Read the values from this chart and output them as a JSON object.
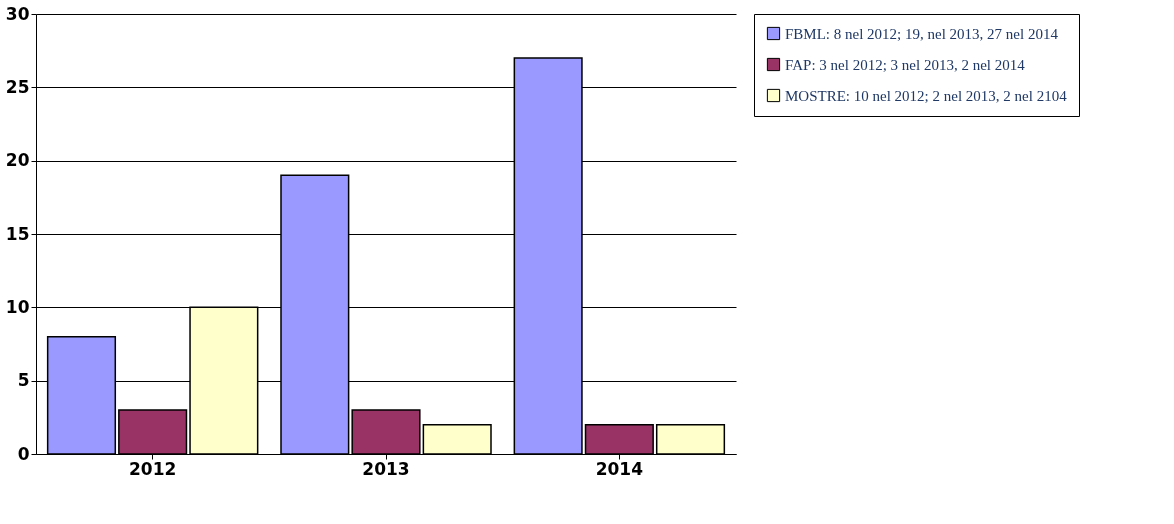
{
  "chart_data": {
    "type": "bar",
    "categories": [
      "2012",
      "2013",
      "2014"
    ],
    "series": [
      {
        "name": "FBML: 8 nel 2012; 19, nel 2013, 27 nel 2014",
        "color": "#9999ff",
        "values": [
          8,
          19,
          27
        ]
      },
      {
        "name": "FAP: 3 nel 2012; 3 nel 2013, 2 nel 2014",
        "color": "#993366",
        "values": [
          3,
          3,
          2
        ]
      },
      {
        "name": "MOSTRE: 10 nel 2012; 2 nel 2013, 2 nel 2104",
        "color": "#ffffcc",
        "values": [
          10,
          2,
          2
        ]
      }
    ],
    "ylim": [
      0,
      30
    ],
    "yticks": [
      0,
      5,
      10,
      15,
      20,
      25,
      30
    ],
    "grid": "y",
    "legend": "right"
  }
}
